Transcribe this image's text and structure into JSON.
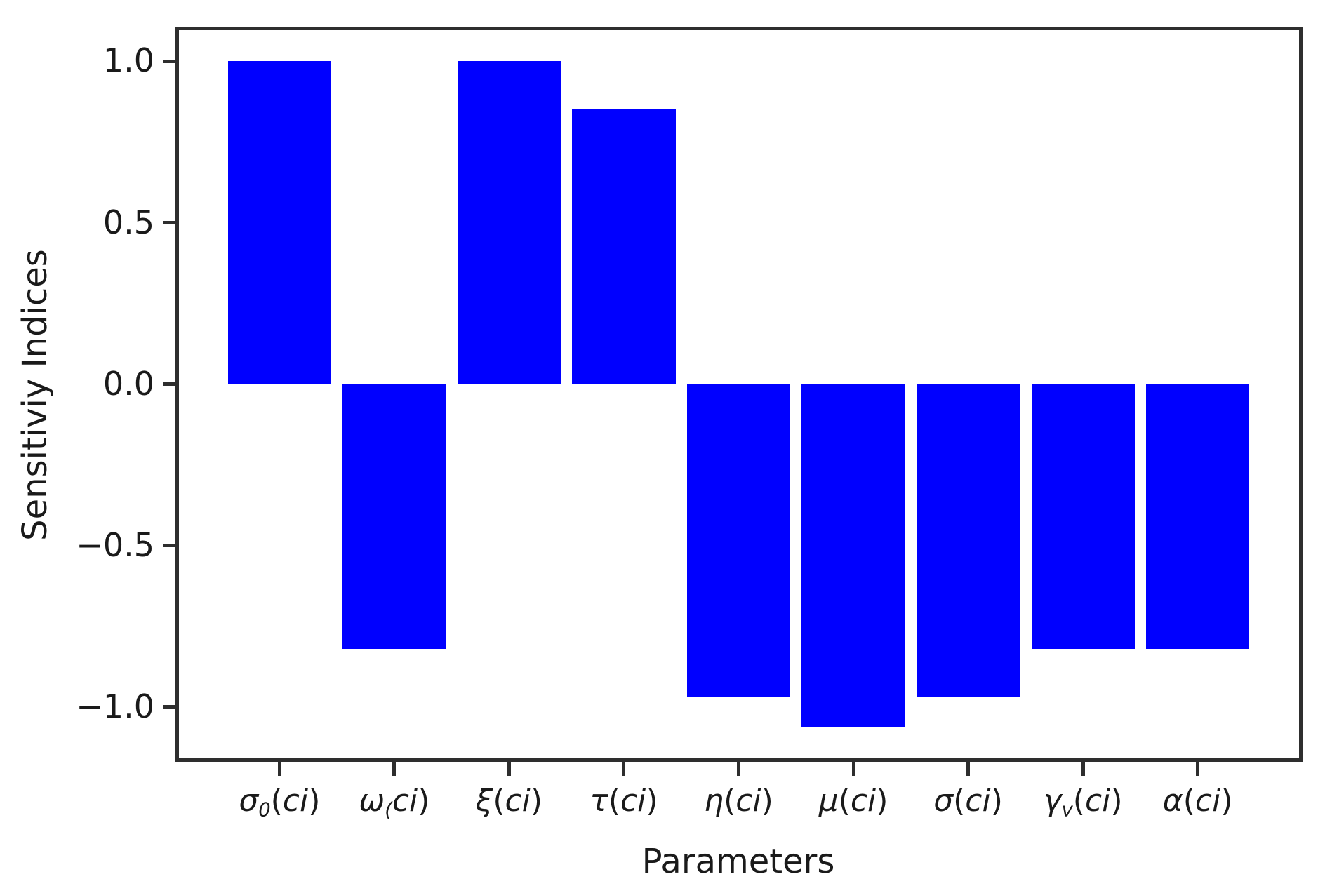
{
  "figure": {
    "background": "#ffffff"
  },
  "chart_data": {
    "type": "bar",
    "title": "",
    "xlabel": "Parameters",
    "ylabel": "Sensitiviy Indices",
    "categories": [
      {
        "sym": "σ",
        "sub": "0",
        "pre": "(",
        "arg": "ci",
        "post": ")"
      },
      {
        "sym": "ω",
        "sub": "(",
        "pre": "",
        "arg": "ci",
        "post": ")"
      },
      {
        "sym": "ξ",
        "sub": "",
        "pre": "(",
        "arg": "ci",
        "post": ")"
      },
      {
        "sym": "τ",
        "sub": "",
        "pre": "(",
        "arg": "ci",
        "post": ")"
      },
      {
        "sym": "η",
        "sub": "",
        "pre": "(",
        "arg": "ci",
        "post": ")"
      },
      {
        "sym": "μ",
        "sub": "",
        "pre": "(",
        "arg": "ci",
        "post": ")"
      },
      {
        "sym": "σ",
        "sub": "",
        "pre": "(",
        "arg": "ci",
        "post": ")"
      },
      {
        "sym": "γ",
        "sub": "v",
        "pre": "(",
        "arg": "ci",
        "post": ")"
      },
      {
        "sym": "α",
        "sub": "",
        "pre": "(",
        "arg": "ci",
        "post": ")"
      }
    ],
    "values": [
      1.0,
      -0.82,
      1.0,
      0.85,
      -0.97,
      -1.06,
      -0.97,
      -0.82,
      -0.82
    ],
    "yticks": [
      1.0,
      0.5,
      0.0,
      -0.5,
      -1.0
    ],
    "ytick_labels": [
      "1.0",
      "0.5",
      "0.0",
      "−0.5",
      "−1.0"
    ],
    "ylim": [
      -1.163,
      1.103
    ],
    "xlim": [
      -0.895,
      8.895
    ],
    "bar_width": 0.9,
    "bar_color": "#0000ff",
    "axis_color": "#2e2e2e",
    "grid": false,
    "legend": "none"
  }
}
